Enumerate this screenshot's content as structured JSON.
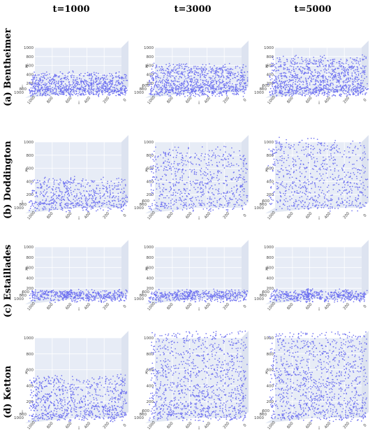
{
  "columns": [
    "t=1000",
    "t=3000",
    "t=5000"
  ],
  "rows": [
    "(a) Bentheimer",
    "(b) Doddington",
    "(c) Estaillades",
    "(d) Ketton"
  ],
  "colors": {
    "point": "#6f72f0",
    "pane": "#e7ecf6",
    "grid": "#ffffff"
  },
  "chart_data": [
    {
      "type": "scatter",
      "row": "(a) Bentheimer",
      "col": "t=1000",
      "title": "",
      "xlabel": "i",
      "ylabel": "j",
      "zlabel": "k",
      "zlim": [
        0,
        1000
      ],
      "z_ticks": [
        "1000",
        "800",
        "600",
        "400",
        "200"
      ],
      "j_ticks": [
        "1000",
        "800"
      ],
      "i_ticks": [
        "1000",
        "800",
        "600",
        "400",
        "200",
        "0"
      ],
      "z_range_of_points": [
        0,
        420
      ],
      "pattern": "uniform",
      "n_points": 900
    },
    {
      "type": "scatter",
      "row": "(a) Bentheimer",
      "col": "t=3000",
      "title": "",
      "xlabel": "i",
      "ylabel": "j",
      "zlabel": "k",
      "zlim": [
        0,
        1000
      ],
      "z_ticks": [
        "1000",
        "800",
        "600",
        "400",
        "200"
      ],
      "j_ticks": [
        "1000",
        "800",
        "600"
      ],
      "i_ticks": [
        "1000",
        "800",
        "600",
        "400",
        "200",
        "0"
      ],
      "z_range_of_points": [
        0,
        620
      ],
      "pattern": "uniform",
      "n_points": 1000
    },
    {
      "type": "scatter",
      "row": "(a) Bentheimer",
      "col": "t=5000",
      "title": "",
      "xlabel": "i",
      "ylabel": "j",
      "zlabel": "k",
      "zlim": [
        0,
        1000
      ],
      "z_ticks": [
        "1000",
        "800",
        "600",
        "400",
        "200"
      ],
      "j_ticks": [
        "1000",
        "800",
        "600"
      ],
      "i_ticks": [
        "1000",
        "800",
        "600",
        "400",
        "200",
        "0"
      ],
      "z_range_of_points": [
        0,
        800
      ],
      "pattern": "uniform",
      "n_points": 1100
    },
    {
      "type": "scatter",
      "row": "(b) Doddington",
      "col": "t=1000",
      "title": "",
      "xlabel": "i",
      "ylabel": "j",
      "zlabel": "k",
      "zlim": [
        0,
        1000
      ],
      "z_ticks": [
        "1000",
        "800",
        "600",
        "400",
        "200"
      ],
      "j_ticks": [
        "1000",
        "800"
      ],
      "i_ticks": [
        "1000",
        "800",
        "600",
        "400",
        "200",
        "0"
      ],
      "z_range_of_points": [
        0,
        450
      ],
      "pattern": "uniform",
      "n_points": 600
    },
    {
      "type": "scatter",
      "row": "(b) Doddington",
      "col": "t=3000",
      "title": "",
      "xlabel": "i",
      "ylabel": "j",
      "zlabel": "k",
      "zlim": [
        0,
        1000
      ],
      "z_ticks": [
        "1000",
        "800",
        "600",
        "400",
        "200"
      ],
      "j_ticks": [
        "1000",
        "800",
        "600"
      ],
      "i_ticks": [
        "1000",
        "800",
        "600",
        "400",
        "200",
        "0"
      ],
      "z_range_of_points": [
        0,
        900
      ],
      "pattern": "sparse",
      "n_points": 700
    },
    {
      "type": "scatter",
      "row": "(b) Doddington",
      "col": "t=5000",
      "title": "",
      "xlabel": "i",
      "ylabel": "j",
      "zlabel": "k",
      "zlim": [
        0,
        1000
      ],
      "z_ticks": [
        "1000",
        "800",
        "600",
        "400",
        "200"
      ],
      "j_ticks": [
        "1000",
        "800",
        "600"
      ],
      "i_ticks": [
        "1000",
        "800",
        "600",
        "400",
        "200",
        "0"
      ],
      "z_range_of_points": [
        0,
        1050
      ],
      "pattern": "sparse",
      "n_points": 700
    },
    {
      "type": "scatter",
      "row": "(c) Estaillades",
      "col": "t=1000",
      "title": "",
      "xlabel": "i",
      "ylabel": "j",
      "zlabel": "k",
      "zlim": [
        0,
        1000
      ],
      "z_ticks": [
        "1000",
        "800",
        "600",
        "400",
        "200"
      ],
      "j_ticks": [
        "1000",
        "800",
        "600"
      ],
      "i_ticks": [
        "1000",
        "800",
        "600",
        "400",
        "200",
        "0"
      ],
      "z_range_of_points": [
        0,
        250
      ],
      "pattern": "band_with_plume",
      "n_points": 500
    },
    {
      "type": "scatter",
      "row": "(c) Estaillades",
      "col": "t=3000",
      "title": "",
      "xlabel": "i",
      "ylabel": "j",
      "zlabel": "k",
      "zlim": [
        0,
        1000
      ],
      "z_ticks": [
        "1000",
        "800",
        "600",
        "400",
        "200"
      ],
      "j_ticks": [
        "1000",
        "800",
        "600"
      ],
      "i_ticks": [
        "1000",
        "800",
        "600",
        "400",
        "200",
        "0"
      ],
      "z_range_of_points": [
        0,
        250
      ],
      "pattern": "band_with_plume",
      "n_points": 500
    },
    {
      "type": "scatter",
      "row": "(c) Estaillades",
      "col": "t=5000",
      "title": "",
      "xlabel": "i",
      "ylabel": "j",
      "zlabel": "k",
      "zlim": [
        0,
        1000
      ],
      "z_ticks": [
        "1000",
        "800",
        "600",
        "400",
        "200"
      ],
      "j_ticks": [
        "1000",
        "800",
        "600"
      ],
      "i_ticks": [
        "1000",
        "800",
        "600",
        "400",
        "200",
        "0"
      ],
      "z_range_of_points": [
        0,
        250
      ],
      "pattern": "band_with_plume",
      "n_points": 500
    },
    {
      "type": "scatter",
      "row": "(d) Ketton",
      "col": "t=1000",
      "title": "",
      "xlabel": "i",
      "ylabel": "j",
      "zlabel": "k",
      "zlim": [
        0,
        1000
      ],
      "z_ticks": [
        "1000",
        "800",
        "600",
        "400",
        "200"
      ],
      "j_ticks": [
        "1000",
        "800"
      ],
      "i_ticks": [
        "1000",
        "800",
        "600",
        "400",
        "200",
        "0"
      ],
      "z_range_of_points": [
        0,
        520
      ],
      "pattern": "chains",
      "n_points": 800
    },
    {
      "type": "scatter",
      "row": "(d) Ketton",
      "col": "t=3000",
      "title": "",
      "xlabel": "i",
      "ylabel": "j",
      "zlabel": "k",
      "zlim": [
        0,
        1000
      ],
      "z_ticks": [
        "1000",
        "800",
        "600",
        "400",
        "200"
      ],
      "j_ticks": [
        "1000",
        "800",
        "600"
      ],
      "i_ticks": [
        "1000",
        "800",
        "600",
        "400",
        "200",
        "0"
      ],
      "z_range_of_points": [
        0,
        1100
      ],
      "pattern": "chains",
      "n_points": 1100
    },
    {
      "type": "scatter",
      "row": "(d) Ketton",
      "col": "t=5000",
      "title": "",
      "xlabel": "i",
      "ylabel": "j",
      "zlabel": "k",
      "zlim": [
        0,
        1000
      ],
      "z_ticks": [
        "1000",
        "800",
        "600",
        "400",
        "200"
      ],
      "j_ticks": [
        "1000",
        "800",
        "600"
      ],
      "i_ticks": [
        "1000",
        "800",
        "600",
        "400",
        "200",
        "0"
      ],
      "z_range_of_points": [
        0,
        1100
      ],
      "pattern": "chains",
      "n_points": 1100
    }
  ]
}
